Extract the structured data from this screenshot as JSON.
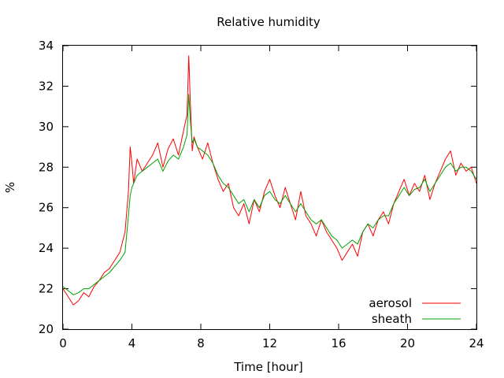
{
  "chart_data": {
    "type": "line",
    "title": "Relative humidity",
    "xlabel": "Time [hour]",
    "ylabel": "%",
    "xlim": [
      0,
      24
    ],
    "ylim": [
      20,
      34
    ],
    "xticks": [
      "0",
      "4",
      "8",
      "12",
      "16",
      "20",
      "24"
    ],
    "yticks": [
      "20",
      "22",
      "24",
      "26",
      "28",
      "30",
      "32",
      "34"
    ],
    "grid": false,
    "legend_position": "bottom-right",
    "series": [
      {
        "name": "aerosol",
        "color": "#ff0000",
        "x": [
          0,
          0.3,
          0.6,
          0.9,
          1.2,
          1.5,
          1.8,
          2.1,
          2.4,
          2.7,
          3.0,
          3.3,
          3.6,
          3.8,
          3.9,
          4.0,
          4.1,
          4.3,
          4.6,
          4.9,
          5.2,
          5.5,
          5.8,
          6.1,
          6.4,
          6.7,
          7.0,
          7.2,
          7.3,
          7.4,
          7.5,
          7.6,
          7.8,
          8.1,
          8.4,
          8.7,
          9.0,
          9.3,
          9.6,
          9.9,
          10.2,
          10.5,
          10.8,
          11.1,
          11.4,
          11.7,
          12.0,
          12.3,
          12.6,
          12.9,
          13.2,
          13.5,
          13.8,
          14.1,
          14.4,
          14.7,
          15.0,
          15.3,
          15.6,
          15.9,
          16.2,
          16.5,
          16.8,
          17.1,
          17.4,
          17.7,
          18.0,
          18.3,
          18.6,
          18.9,
          19.2,
          19.5,
          19.8,
          20.1,
          20.4,
          20.7,
          21.0,
          21.3,
          21.6,
          21.9,
          22.2,
          22.5,
          22.8,
          23.1,
          23.4,
          23.7,
          24.0
        ],
        "y": [
          22.0,
          21.6,
          21.2,
          21.4,
          21.8,
          21.6,
          22.1,
          22.4,
          22.8,
          23.0,
          23.4,
          23.8,
          24.8,
          26.8,
          29.0,
          28.2,
          27.2,
          28.4,
          27.8,
          28.2,
          28.6,
          29.2,
          28.0,
          28.9,
          29.4,
          28.6,
          29.8,
          30.6,
          33.5,
          31.0,
          28.8,
          29.5,
          29.0,
          28.4,
          29.2,
          28.2,
          27.4,
          26.8,
          27.2,
          26.0,
          25.6,
          26.2,
          25.2,
          26.4,
          25.8,
          26.8,
          27.4,
          26.6,
          26.0,
          27.0,
          26.2,
          25.4,
          26.8,
          25.6,
          25.2,
          24.6,
          25.4,
          24.8,
          24.4,
          24.0,
          23.4,
          23.8,
          24.2,
          23.6,
          24.8,
          25.2,
          24.6,
          25.4,
          25.8,
          25.2,
          26.2,
          26.8,
          27.4,
          26.6,
          27.2,
          26.8,
          27.6,
          26.4,
          27.2,
          27.8,
          28.4,
          28.8,
          27.6,
          28.2,
          27.8,
          28.0,
          27.2
        ]
      },
      {
        "name": "sheath",
        "color": "#00a000",
        "x": [
          0,
          0.3,
          0.6,
          0.9,
          1.2,
          1.5,
          1.8,
          2.1,
          2.4,
          2.7,
          3.0,
          3.3,
          3.6,
          3.8,
          3.9,
          4.0,
          4.1,
          4.3,
          4.6,
          4.9,
          5.2,
          5.5,
          5.8,
          6.1,
          6.4,
          6.7,
          7.0,
          7.2,
          7.3,
          7.4,
          7.5,
          7.6,
          7.8,
          8.1,
          8.4,
          8.7,
          9.0,
          9.3,
          9.6,
          9.9,
          10.2,
          10.5,
          10.8,
          11.1,
          11.4,
          11.7,
          12.0,
          12.3,
          12.6,
          12.9,
          13.2,
          13.5,
          13.8,
          14.1,
          14.4,
          14.7,
          15.0,
          15.3,
          15.6,
          15.9,
          16.2,
          16.5,
          16.8,
          17.1,
          17.4,
          17.7,
          18.0,
          18.3,
          18.6,
          18.9,
          19.2,
          19.5,
          19.8,
          20.1,
          20.4,
          20.7,
          21.0,
          21.3,
          21.6,
          21.9,
          22.2,
          22.5,
          22.8,
          23.1,
          23.4,
          23.7,
          24.0
        ],
        "y": [
          22.1,
          21.9,
          21.7,
          21.8,
          22.0,
          22.0,
          22.2,
          22.4,
          22.6,
          22.8,
          23.1,
          23.4,
          23.8,
          25.6,
          26.6,
          27.0,
          27.2,
          27.6,
          27.8,
          28.0,
          28.2,
          28.4,
          27.8,
          28.3,
          28.6,
          28.4,
          29.0,
          29.6,
          31.6,
          30.2,
          29.2,
          29.4,
          29.0,
          28.8,
          28.6,
          28.2,
          27.6,
          27.2,
          27.0,
          26.6,
          26.2,
          26.4,
          25.8,
          26.4,
          26.0,
          26.6,
          26.8,
          26.4,
          26.2,
          26.6,
          26.2,
          25.8,
          26.2,
          25.8,
          25.4,
          25.2,
          25.4,
          25.0,
          24.6,
          24.4,
          24.0,
          24.2,
          24.4,
          24.2,
          24.8,
          25.2,
          25.0,
          25.4,
          25.6,
          25.6,
          26.2,
          26.6,
          27.0,
          26.6,
          26.9,
          27.0,
          27.4,
          26.8,
          27.2,
          27.6,
          28.0,
          28.2,
          27.8,
          28.0,
          28.0,
          27.8,
          27.4
        ]
      }
    ]
  }
}
